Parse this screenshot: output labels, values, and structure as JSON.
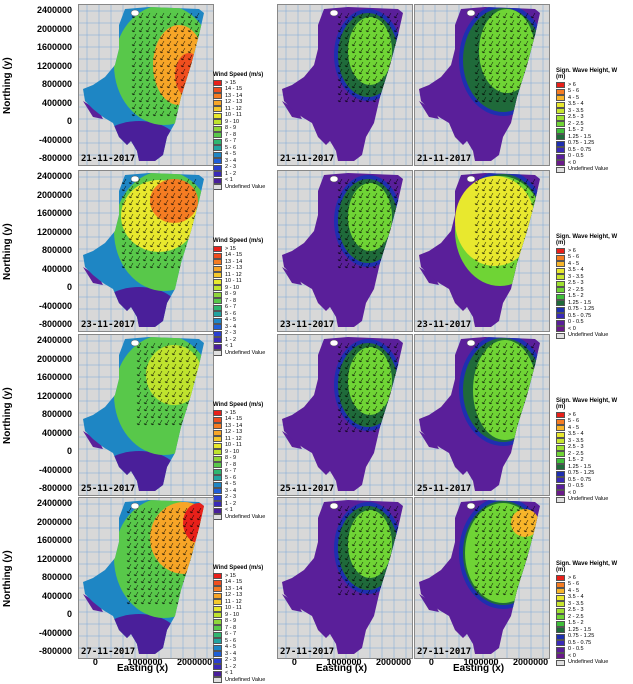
{
  "y_axis": {
    "title": "Northing (y)",
    "ticks": [
      "2400000",
      "2000000",
      "1600000",
      "1200000",
      "800000",
      "400000",
      "0",
      "-400000",
      "-800000"
    ]
  },
  "x_axis": {
    "title": "Easting (x)",
    "ticks": [
      "0",
      "1000000",
      "2000000"
    ]
  },
  "legends": {
    "wind": {
      "title": "Wind Speed (m/s)",
      "items": [
        {
          "label": "> 15",
          "color": "#e8201a"
        },
        {
          "label": "14 - 15",
          "color": "#f04e1e"
        },
        {
          "label": "13 - 14",
          "color": "#f57c22"
        },
        {
          "label": "12 - 13",
          "color": "#f7a527"
        },
        {
          "label": "11 - 12",
          "color": "#f5c92c"
        },
        {
          "label": "10 - 11",
          "color": "#e8e82e"
        },
        {
          "label": "9 - 10",
          "color": "#bfe32e"
        },
        {
          "label": "8 - 9",
          "color": "#8fd63a"
        },
        {
          "label": "7 - 8",
          "color": "#58c84a"
        },
        {
          "label": "6 - 7",
          "color": "#2fb670"
        },
        {
          "label": "5 - 6",
          "color": "#22a3a0"
        },
        {
          "label": "4 - 5",
          "color": "#1e86c4"
        },
        {
          "label": "3 - 4",
          "color": "#1f5fd8"
        },
        {
          "label": "2 - 3",
          "color": "#2a3fd0"
        },
        {
          "label": "1 - 2",
          "color": "#3a2ab8"
        },
        {
          "label": "< 1",
          "color": "#4a1f9a"
        },
        {
          "label": "Undefined Value",
          "color": "#e0e0e0"
        }
      ]
    },
    "wave": {
      "title": "Sign. Wave Height, W (m)",
      "items": [
        {
          "label": "> 6",
          "color": "#e8201a"
        },
        {
          "label": "5 - 6",
          "color": "#f57c22"
        },
        {
          "label": "4 - 5",
          "color": "#f7b52a"
        },
        {
          "label": "3.5 - 4",
          "color": "#e8e82e"
        },
        {
          "label": "3 - 3.5",
          "color": "#c8e62e"
        },
        {
          "label": "2.5 - 3",
          "color": "#9ee030"
        },
        {
          "label": "2 - 2.5",
          "color": "#6fd435"
        },
        {
          "label": "1.5 - 2",
          "color": "#3fbf3a"
        },
        {
          "label": "1.25 - 1.5",
          "color": "#1f6a3a"
        },
        {
          "label": "0.75 - 1.25",
          "color": "#1e2fb0"
        },
        {
          "label": "0.5 - 0.75",
          "color": "#3a2ab8"
        },
        {
          "label": "0 - 0.5",
          "color": "#5a1f9a"
        },
        {
          "label": "< 0",
          "color": "#6a1a8a"
        },
        {
          "label": "Undefined Value",
          "color": "#e0e0e0"
        }
      ]
    }
  },
  "rows": [
    {
      "date": "21-11-2017"
    },
    {
      "date": "23-11-2017"
    },
    {
      "date": "25-11-2017"
    },
    {
      "date": "27-11-2017"
    }
  ],
  "colors": {
    "land": "#d8d8d8",
    "grid": "#7aa6d8",
    "sea_low": "#5a1f9a",
    "sea_mid": "#1e86c4",
    "sea_green": "#58c84a",
    "sea_yellow": "#e8e82e",
    "sea_red": "#e8201a",
    "wave_green": "#6fd435",
    "wave_dark": "#1f6a3a"
  }
}
